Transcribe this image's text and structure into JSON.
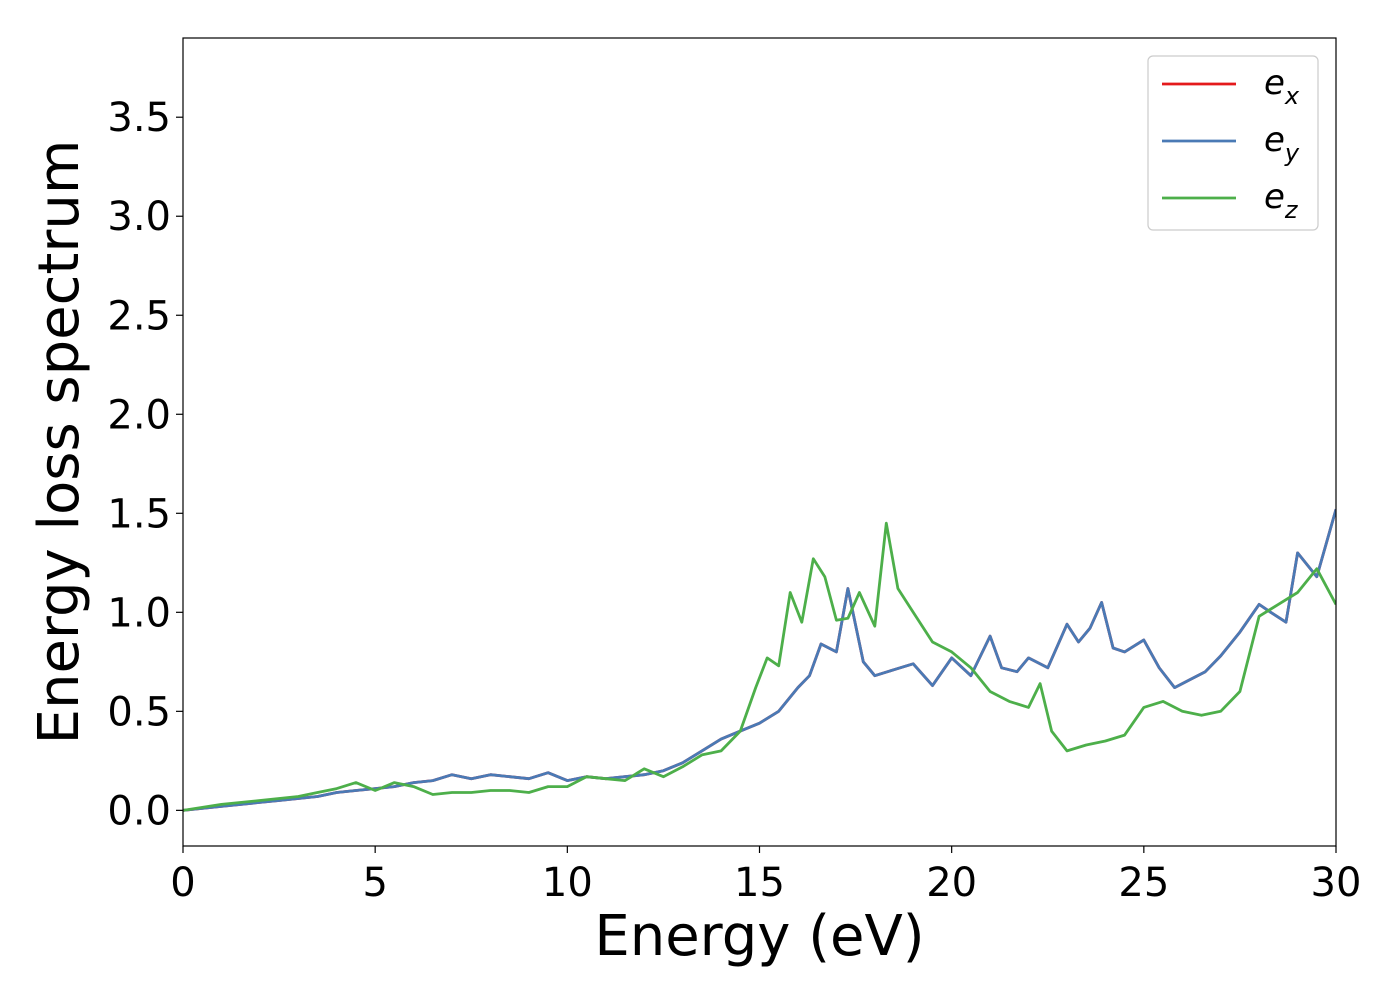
{
  "chart_data": {
    "type": "line",
    "title": "",
    "xlabel": "Energy (eV)",
    "ylabel": "Energy loss spectrum",
    "xlim": [
      0,
      30
    ],
    "ylim": [
      -0.18,
      3.9
    ],
    "xticks": [
      0,
      5,
      10,
      15,
      20,
      25,
      30
    ],
    "yticks": [
      0.0,
      0.5,
      1.0,
      1.5,
      2.0,
      2.5,
      3.0,
      3.5
    ],
    "xtick_labels": [
      "0",
      "5",
      "10",
      "15",
      "20",
      "25",
      "30"
    ],
    "ytick_labels": [
      "0.0",
      "0.5",
      "1.0",
      "1.5",
      "2.0",
      "2.5",
      "3.0",
      "3.5"
    ],
    "grid": false,
    "legend_position": "top-right",
    "series": [
      {
        "name": "e",
        "subscript": "x",
        "color": "#e41a1c",
        "x": [
          0,
          1,
          2,
          2.5,
          3,
          3.5,
          4,
          4.5,
          5,
          5.5,
          6,
          6.5,
          7,
          7.5,
          8,
          8.5,
          9,
          9.5,
          10,
          10.5,
          11,
          11.5,
          12,
          12.5,
          13,
          13.5,
          14,
          14.5,
          15,
          15.5,
          16,
          16.3,
          16.6,
          17,
          17.3,
          17.7,
          18,
          18.5,
          19,
          19.5,
          20,
          20.5,
          21,
          21.3,
          21.7,
          22,
          22.5,
          23,
          23.3,
          23.6,
          23.9,
          24.2,
          24.5,
          25,
          25.4,
          25.8,
          26.2,
          26.6,
          27,
          27.5,
          28,
          28.3,
          28.7,
          29,
          29.5,
          30
        ],
        "y": [
          0,
          0.02,
          0.04,
          0.05,
          0.06,
          0.07,
          0.09,
          0.1,
          0.11,
          0.12,
          0.14,
          0.15,
          0.18,
          0.16,
          0.18,
          0.17,
          0.16,
          0.19,
          0.15,
          0.17,
          0.16,
          0.17,
          0.18,
          0.2,
          0.24,
          0.3,
          0.36,
          0.4,
          0.44,
          0.5,
          0.62,
          0.68,
          0.84,
          0.8,
          1.12,
          0.75,
          0.68,
          0.71,
          0.74,
          0.63,
          0.77,
          0.68,
          0.88,
          0.72,
          0.7,
          0.77,
          0.72,
          0.94,
          0.85,
          0.92,
          1.05,
          0.82,
          0.8,
          0.86,
          0.72,
          0.62,
          0.66,
          0.7,
          0.78,
          0.9,
          1.04,
          1.0,
          0.95,
          1.3,
          1.18,
          1.52
        ]
      },
      {
        "name": "e",
        "subscript": "y",
        "color": "#4a7ab5",
        "x": [
          0,
          1,
          2,
          2.5,
          3,
          3.5,
          4,
          4.5,
          5,
          5.5,
          6,
          6.5,
          7,
          7.5,
          8,
          8.5,
          9,
          9.5,
          10,
          10.5,
          11,
          11.5,
          12,
          12.5,
          13,
          13.5,
          14,
          14.5,
          15,
          15.5,
          16,
          16.3,
          16.6,
          17,
          17.3,
          17.7,
          18,
          18.5,
          19,
          19.5,
          20,
          20.5,
          21,
          21.3,
          21.7,
          22,
          22.5,
          23,
          23.3,
          23.6,
          23.9,
          24.2,
          24.5,
          25,
          25.4,
          25.8,
          26.2,
          26.6,
          27,
          27.5,
          28,
          28.3,
          28.7,
          29,
          29.5,
          30
        ],
        "y": [
          0,
          0.02,
          0.04,
          0.05,
          0.06,
          0.07,
          0.09,
          0.1,
          0.11,
          0.12,
          0.14,
          0.15,
          0.18,
          0.16,
          0.18,
          0.17,
          0.16,
          0.19,
          0.15,
          0.17,
          0.16,
          0.17,
          0.18,
          0.2,
          0.24,
          0.3,
          0.36,
          0.4,
          0.44,
          0.5,
          0.62,
          0.68,
          0.84,
          0.8,
          1.12,
          0.75,
          0.68,
          0.71,
          0.74,
          0.63,
          0.77,
          0.68,
          0.88,
          0.72,
          0.7,
          0.77,
          0.72,
          0.94,
          0.85,
          0.92,
          1.05,
          0.82,
          0.8,
          0.86,
          0.72,
          0.62,
          0.66,
          0.7,
          0.78,
          0.9,
          1.04,
          1.0,
          0.95,
          1.3,
          1.18,
          1.52
        ]
      },
      {
        "name": "e",
        "subscript": "z",
        "color": "#4daf4a",
        "x": [
          0,
          1,
          2,
          2.5,
          3,
          3.5,
          4,
          4.5,
          5,
          5.5,
          6,
          6.5,
          7,
          7.5,
          8,
          8.5,
          9,
          9.5,
          10,
          10.5,
          11,
          11.5,
          12,
          12.5,
          13,
          13.5,
          14,
          14.5,
          14.9,
          15.2,
          15.5,
          15.8,
          16.1,
          16.4,
          16.7,
          17,
          17.3,
          17.6,
          18,
          18.3,
          18.6,
          19,
          19.5,
          20,
          20.5,
          21,
          21.5,
          22,
          22.3,
          22.6,
          23,
          23.5,
          24,
          24.5,
          25,
          25.5,
          26,
          26.5,
          27,
          27.5,
          28,
          28.5,
          29,
          29.5,
          30
        ],
        "y": [
          0,
          0.03,
          0.05,
          0.06,
          0.07,
          0.09,
          0.11,
          0.14,
          0.1,
          0.14,
          0.12,
          0.08,
          0.09,
          0.09,
          0.1,
          0.1,
          0.09,
          0.12,
          0.12,
          0.17,
          0.16,
          0.15,
          0.21,
          0.17,
          0.22,
          0.28,
          0.3,
          0.4,
          0.62,
          0.77,
          0.73,
          1.1,
          0.95,
          1.27,
          1.18,
          0.96,
          0.97,
          1.1,
          0.93,
          1.45,
          1.12,
          1.0,
          0.85,
          0.8,
          0.72,
          0.6,
          0.55,
          0.52,
          0.64,
          0.4,
          0.3,
          0.33,
          0.35,
          0.38,
          0.52,
          0.55,
          0.5,
          0.48,
          0.5,
          0.6,
          0.98,
          1.04,
          1.1,
          1.22,
          1.04
        ]
      }
    ]
  }
}
